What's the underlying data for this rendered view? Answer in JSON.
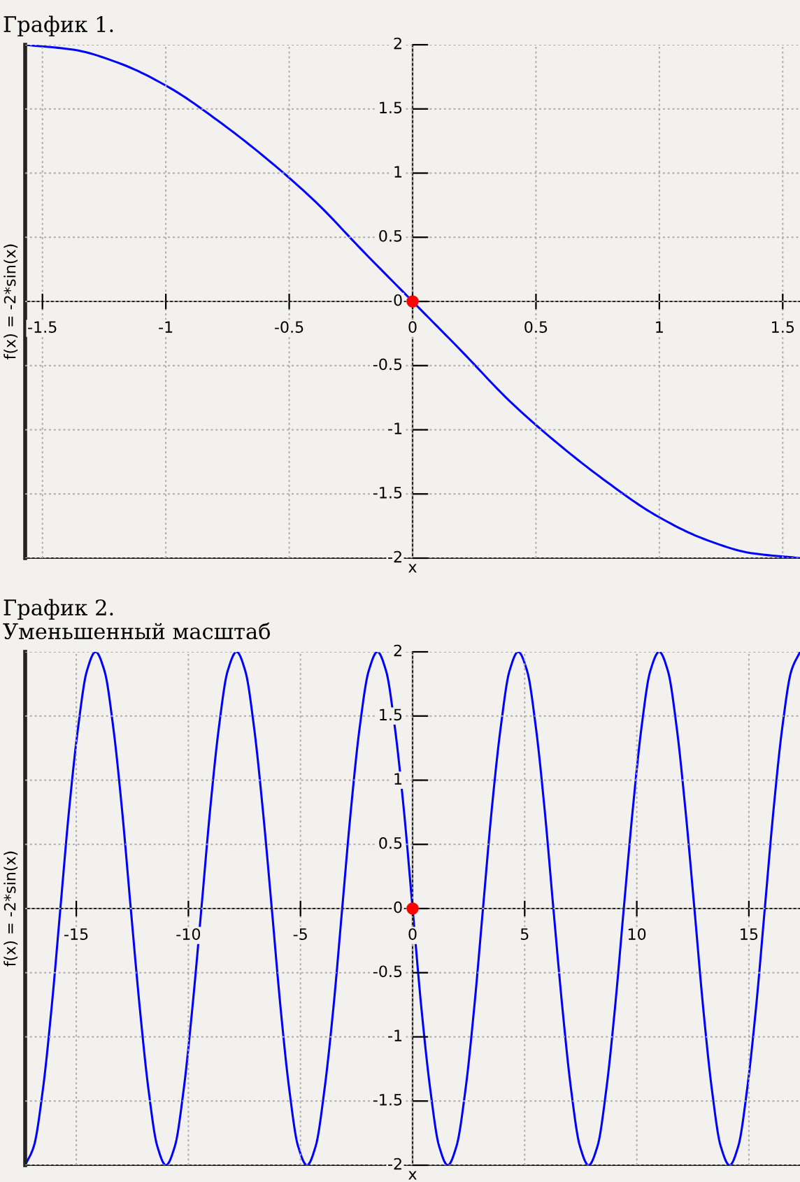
{
  "chart_data": [
    {
      "type": "line",
      "title": "График 1.",
      "xlabel": "x",
      "ylabel": "f(x) = -2*sin(x)",
      "xlim": [
        -1.57,
        1.57
      ],
      "ylim": [
        -2,
        2
      ],
      "xticks": [
        -1.5,
        -1,
        -0.5,
        0,
        0.5,
        1,
        1.5
      ],
      "yticks": [
        -2,
        -1.5,
        -1,
        -0.5,
        0,
        0.5,
        1,
        1.5,
        2
      ],
      "grid": true,
      "series": [
        {
          "type": "line",
          "color": "#0000ff",
          "x": [
            -1.57,
            -1.37,
            -1.18,
            -0.98,
            -0.79,
            -0.59,
            -0.39,
            -0.2,
            0,
            0.2,
            0.39,
            0.59,
            0.79,
            0.98,
            1.18,
            1.37,
            1.57
          ],
          "values": [
            2,
            1.96,
            1.85,
            1.66,
            1.41,
            1.11,
            0.77,
            0.39,
            0,
            -0.39,
            -0.77,
            -1.11,
            -1.41,
            -1.66,
            -1.85,
            -1.96,
            -2
          ]
        },
        {
          "type": "scatter",
          "color": "#ff0000",
          "marker": "circle",
          "x": [
            0
          ],
          "values": [
            0
          ]
        }
      ]
    },
    {
      "type": "line",
      "title": "График 2.",
      "subtitle": "Уменьшенный масштаб",
      "xlabel": "x",
      "ylabel": "f(x) = -2*sin(x)",
      "xlim": [
        -17.28,
        17.28
      ],
      "ylim": [
        -2,
        2
      ],
      "xticks": [
        -15,
        -10,
        -5,
        0,
        5,
        10,
        15
      ],
      "yticks": [
        -2,
        -1.5,
        -1,
        -0.5,
        0,
        0.5,
        1,
        1.5,
        2
      ],
      "grid": true,
      "series": [
        {
          "type": "line",
          "color": "#0000ff",
          "x": [
            -17.28,
            -16.89,
            -16.49,
            -16.1,
            -15.71,
            -15.32,
            -14.92,
            -14.53,
            -14.14,
            -13.74,
            -13.35,
            -12.96,
            -12.57,
            -12.17,
            -11.78,
            -11.39,
            -11.0,
            -10.6,
            -10.21,
            -9.82,
            -9.42,
            -9.03,
            -8.64,
            -8.25,
            -7.85,
            -7.46,
            -7.07,
            -6.68,
            -6.28,
            -5.89,
            -5.5,
            -5.11,
            -4.71,
            -4.32,
            -3.93,
            -3.53,
            -3.14,
            -2.75,
            -2.36,
            -1.96,
            -1.57,
            -1.18,
            -0.79,
            -0.39,
            0,
            0.39,
            0.79,
            1.18,
            1.57,
            1.96,
            2.36,
            2.75,
            3.14,
            3.53,
            3.93,
            4.32,
            4.71,
            5.11,
            5.5,
            5.89,
            6.28,
            6.68,
            7.07,
            7.46,
            7.85,
            8.25,
            8.64,
            9.03,
            9.42,
            9.82,
            10.21,
            10.6,
            11.0,
            11.39,
            11.78,
            12.17,
            12.57,
            12.96,
            13.35,
            13.74,
            14.14,
            14.53,
            14.92,
            15.32,
            15.71,
            16.1,
            16.49,
            16.89,
            17.28
          ],
          "values": [
            -2,
            -1.85,
            -1.41,
            -0.77,
            0,
            0.77,
            1.41,
            1.85,
            2,
            1.85,
            1.41,
            0.77,
            0,
            -0.77,
            -1.41,
            -1.85,
            -2,
            -1.85,
            -1.41,
            -0.77,
            0,
            0.77,
            1.41,
            1.85,
            2,
            1.85,
            1.41,
            0.77,
            0,
            -0.77,
            -1.41,
            -1.85,
            -2,
            -1.85,
            -1.41,
            -0.77,
            0,
            0.77,
            1.41,
            1.85,
            2,
            1.85,
            1.41,
            0.77,
            0,
            -0.77,
            -1.41,
            -1.85,
            -2,
            -1.85,
            -1.41,
            -0.77,
            0,
            0.77,
            1.41,
            1.85,
            2,
            1.85,
            1.41,
            0.77,
            0,
            -0.77,
            -1.41,
            -1.85,
            -2,
            -1.85,
            -1.41,
            -0.77,
            0,
            0.77,
            1.41,
            1.85,
            2,
            1.85,
            1.41,
            0.77,
            0,
            -0.77,
            -1.41,
            -1.85,
            -2,
            -1.85,
            -1.41,
            -0.77,
            0,
            0.77,
            1.41,
            1.85,
            2
          ]
        },
        {
          "type": "scatter",
          "color": "#ff0000",
          "marker": "circle",
          "x": [
            0
          ],
          "values": [
            0
          ]
        }
      ]
    }
  ]
}
